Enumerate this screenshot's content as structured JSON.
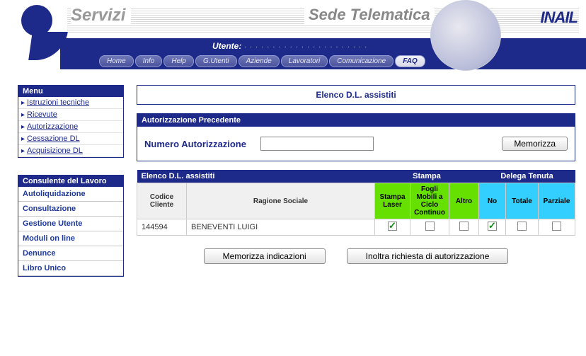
{
  "colors": {
    "brand_blue": "#1e2a8a",
    "lime": "#66e000",
    "cyan": "#33d0ff",
    "header_grey": "#999999"
  },
  "header": {
    "servizi": "Servizi",
    "sede": "Sede Telematica",
    "brand": "INAIL",
    "utente_label": "Utente:",
    "utente_value": "· · · · · · · · · · · · · · · · · · · · · ·",
    "nav": {
      "home": "Home",
      "info": "Info",
      "help": "Help",
      "gutenti": "G.Utenti",
      "aziende": "Aziende",
      "lavoratori": "Lavoratori",
      "comunicazione": "Comunicazione",
      "faq": "FAQ"
    }
  },
  "sidebar": {
    "menu_title": "Menu",
    "items": {
      "istruzioni": "Istruzioni tecniche",
      "ricevute": "Ricevute",
      "autorizzazione": "Autorizzazione",
      "cessazione": "Cessazione DL",
      "acquisizione": "Acquisizione DL"
    },
    "menu2_title": "Consulente del Lavoro",
    "items2": {
      "autoliquidazione": "Autoliquidazione",
      "consultazione": "Consultazione",
      "gestione_utente": "Gestione Utente",
      "moduli": "Moduli on line",
      "denunce": "Denunce",
      "libro": "Libro Unico"
    }
  },
  "main": {
    "elenco_title": "Elenco D.L. assistiti",
    "auth_prev_title": "Autorizzazione Precedente",
    "num_auth_label": "Numero Autorizzazione",
    "memorizza_btn": "Memorizza",
    "grid": {
      "head_elenco": "Elenco D.L. assistiti",
      "head_stampa": "Stampa",
      "head_delega": "Delega Tenuta",
      "col_codice": "Codice Cliente",
      "col_ragione": "Ragione Sociale",
      "col_stampa_laser": "Stampa Laser",
      "col_fogli": "Fogli Mobili a Ciclo Continuo",
      "col_altro": "Altro",
      "col_no": "No",
      "col_totale": "Totale",
      "col_parziale": "Parziale",
      "rows": [
        {
          "codice": "144594",
          "ragione": "BENEVENTI LUIGI",
          "stampa_laser": true,
          "fogli": false,
          "altro": false,
          "no": true,
          "totale": false,
          "parziale": false
        }
      ]
    },
    "btn_memorizza_ind": "Memorizza indicazioni",
    "btn_inoltra": "Inoltra richiesta di autorizzazione"
  }
}
